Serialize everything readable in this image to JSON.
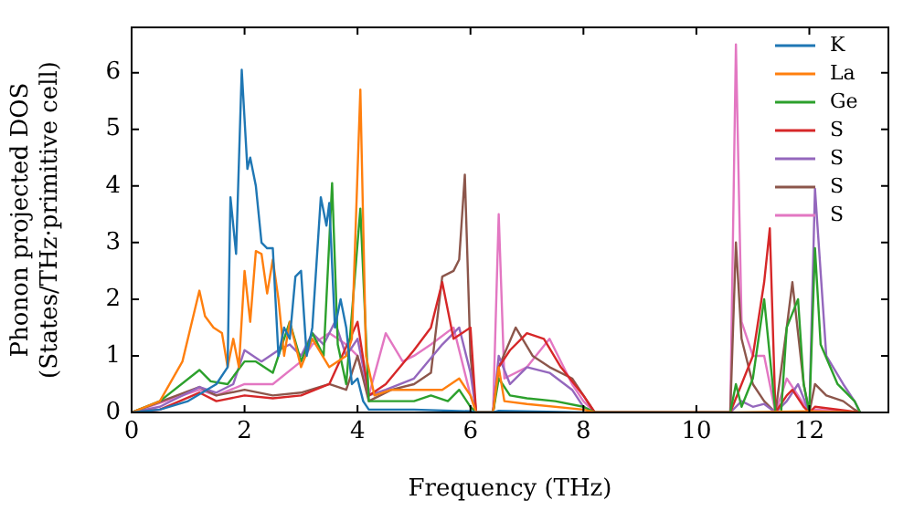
{
  "chart_data": {
    "type": "line",
    "xlabel": "Frequency (THz)",
    "ylabel": "Phonon projected DOS\n(States/THz·primitive cell)",
    "xlim": [
      0,
      13.4
    ],
    "xticks": [
      0,
      2,
      4,
      6,
      8,
      10,
      12
    ],
    "ylim": [
      0,
      6.8
    ],
    "yticks": [
      0,
      1,
      2,
      3,
      4,
      5,
      6
    ],
    "legend": "top right",
    "grid": false,
    "marker": "none",
    "line_style": "solid",
    "series": [
      {
        "name": "K",
        "color": "#1f77b4",
        "x": [
          0,
          0.5,
          1,
          1.5,
          1.7,
          1.75,
          1.85,
          1.95,
          2.05,
          2.1,
          2.2,
          2.3,
          2.4,
          2.5,
          2.6,
          2.7,
          2.8,
          2.9,
          3,
          3.1,
          3.2,
          3.35,
          3.45,
          3.5,
          3.6,
          3.7,
          3.8,
          3.9,
          4,
          4.1,
          4.2,
          5,
          6,
          6.1,
          6.4,
          6.5,
          8
        ],
        "values": [
          0,
          0.05,
          0.2,
          0.5,
          0.8,
          3.8,
          2.8,
          6.05,
          4.3,
          4.5,
          4,
          3,
          2.9,
          2.9,
          1,
          1.5,
          1.3,
          2.4,
          2.5,
          1,
          1.5,
          3.8,
          3.3,
          3.7,
          1.5,
          2,
          1.5,
          0.5,
          0.6,
          0.2,
          0.05,
          0.05,
          0.02,
          0,
          0,
          0.03,
          0
        ]
      },
      {
        "name": "La",
        "color": "#ff7f0e",
        "x": [
          0,
          0.5,
          0.9,
          1.2,
          1.3,
          1.45,
          1.6,
          1.7,
          1.8,
          1.9,
          2,
          2.1,
          2.2,
          2.3,
          2.4,
          2.5,
          2.6,
          2.7,
          2.8,
          3,
          3.2,
          3.5,
          3.8,
          3.9,
          4.05,
          4.15,
          4.3,
          4.6,
          5,
          5.5,
          5.8,
          6,
          6.1,
          6.4,
          6.5,
          6.6,
          7,
          8,
          8.2,
          10.7,
          12,
          12.9
        ],
        "values": [
          0,
          0.2,
          0.9,
          2.15,
          1.7,
          1.5,
          1.4,
          0.8,
          1.3,
          0.8,
          2.5,
          1.6,
          2.85,
          2.8,
          2.1,
          2.7,
          2,
          1,
          1.6,
          0.8,
          1.3,
          0.8,
          1,
          1.3,
          5.7,
          1,
          0.3,
          0.4,
          0.4,
          0.4,
          0.6,
          0.3,
          0,
          0,
          0.8,
          0.2,
          0.15,
          0.05,
          0,
          0,
          0.02,
          0
        ]
      },
      {
        "name": "Ge",
        "color": "#2ca02c",
        "x": [
          0,
          0.5,
          1.2,
          1.4,
          1.7,
          2,
          2.2,
          2.5,
          2.8,
          3,
          3.2,
          3.4,
          3.55,
          3.65,
          3.8,
          4.05,
          4.2,
          4.5,
          5,
          5.3,
          5.6,
          5.8,
          6,
          6.1,
          6.4,
          6.5,
          6.7,
          7,
          7.5,
          8,
          8.2,
          10.6,
          10.7,
          10.8,
          11,
          11.2,
          11.4,
          11.5,
          11.6,
          11.8,
          11.9,
          12,
          12.1,
          12.2,
          12.5,
          12.8,
          12.9
        ],
        "values": [
          0,
          0.2,
          0.75,
          0.55,
          0.5,
          0.9,
          0.9,
          0.7,
          1.6,
          0.9,
          1.4,
          1,
          4.05,
          1.2,
          0.5,
          3.6,
          0.2,
          0.2,
          0.2,
          0.3,
          0.2,
          0.4,
          0.1,
          0,
          0,
          0.6,
          0.3,
          0.25,
          0.2,
          0.1,
          0,
          0,
          0.5,
          0.1,
          0.6,
          2,
          0,
          0,
          1.5,
          2,
          0.5,
          0,
          2.9,
          1.2,
          0.5,
          0.2,
          0
        ]
      },
      {
        "name": "S",
        "color": "#d62728",
        "x": [
          0,
          0.5,
          1.2,
          1.5,
          2,
          2.5,
          3,
          3.5,
          4,
          4.2,
          4.5,
          5,
          5.3,
          5.5,
          5.7,
          6,
          6.1,
          6.4,
          6.5,
          6.7,
          7,
          7.3,
          7.6,
          8,
          8.2,
          10.6,
          10.8,
          11,
          11.2,
          11.3,
          11.4,
          11.6,
          11.7,
          11.9,
          12,
          12.1,
          12.9
        ],
        "values": [
          0,
          0.05,
          0.35,
          0.2,
          0.3,
          0.25,
          0.3,
          0.5,
          1.6,
          0.3,
          0.5,
          1.1,
          1.5,
          2.3,
          1.3,
          1.5,
          0,
          0,
          0.8,
          1.1,
          1.4,
          1.3,
          0.8,
          0.3,
          0,
          0,
          0.5,
          1,
          2.3,
          3.25,
          0,
          0.3,
          0.4,
          0.1,
          0,
          0.1,
          0
        ]
      },
      {
        "name": "S",
        "color": "#9467bd",
        "x": [
          0,
          0.5,
          1.2,
          1.5,
          1.8,
          2,
          2.3,
          2.6,
          2.8,
          3,
          3.2,
          3.4,
          3.6,
          3.8,
          4,
          4.2,
          4.5,
          5,
          5.5,
          5.8,
          6,
          6.1,
          6.4,
          6.5,
          6.7,
          7,
          7.4,
          7.8,
          8,
          8.2,
          10.6,
          10.8,
          11,
          11.2,
          11.4,
          11.6,
          11.8,
          12,
          12.1,
          12.3,
          12.6,
          12.8,
          12.9
        ],
        "values": [
          0,
          0.1,
          0.45,
          0.35,
          0.5,
          1.1,
          0.9,
          1.1,
          1.2,
          1,
          1.4,
          1.2,
          1.6,
          1,
          1.3,
          0.3,
          0.4,
          0.6,
          1.2,
          1.5,
          0.7,
          0,
          0,
          1,
          0.5,
          0.8,
          0.7,
          0.4,
          0.1,
          0,
          0,
          0.2,
          0.1,
          0.15,
          0,
          0.2,
          0.5,
          0,
          3.95,
          1,
          0.5,
          0.2,
          0
        ]
      },
      {
        "name": "S",
        "color": "#8c564b",
        "x": [
          0,
          1.2,
          1.5,
          2,
          2.5,
          3,
          3.5,
          3.8,
          4,
          4.2,
          4.6,
          5,
          5.3,
          5.5,
          5.7,
          5.8,
          5.9,
          6,
          6.1,
          6.4,
          6.5,
          6.8,
          7.1,
          7.4,
          7.8,
          8,
          8.2,
          10.6,
          10.7,
          10.8,
          11,
          11.2,
          11.4,
          11.6,
          11.7,
          11.9,
          12,
          12.1,
          12.3,
          12.6,
          12.8,
          12.9
        ],
        "values": [
          0,
          0.45,
          0.3,
          0.4,
          0.3,
          0.35,
          0.5,
          0.4,
          1,
          0.2,
          0.4,
          0.5,
          0.7,
          2.4,
          2.5,
          2.7,
          4.2,
          1,
          0,
          0,
          0.8,
          1.5,
          1,
          0.8,
          0.6,
          0.3,
          0,
          0,
          3,
          1.3,
          0.5,
          0.2,
          0,
          1.5,
          2.3,
          0.5,
          0,
          0.5,
          0.3,
          0.2,
          0.05,
          0
        ]
      },
      {
        "name": "S",
        "color": "#e377c2",
        "x": [
          0,
          1.2,
          1.5,
          2,
          2.5,
          3,
          3.2,
          3.5,
          3.8,
          4,
          4.2,
          4.5,
          4.8,
          5,
          5.3,
          5.7,
          6,
          6.1,
          6.4,
          6.5,
          6.6,
          7,
          7.4,
          7.8,
          8,
          8.2,
          10.6,
          10.7,
          10.8,
          11,
          11.2,
          11.3,
          11.4,
          11.6,
          11.8,
          12,
          12.1,
          12.9
        ],
        "values": [
          0,
          0.4,
          0.3,
          0.5,
          0.5,
          0.9,
          1.2,
          1.4,
          1.2,
          1,
          0.3,
          1.4,
          0.9,
          1,
          1.2,
          1.5,
          0.3,
          0,
          0,
          3.5,
          0.6,
          0.8,
          1.3,
          0.5,
          0.2,
          0,
          0,
          6.5,
          1.6,
          1,
          1,
          0.5,
          0,
          0.6,
          0.3,
          0,
          0.05,
          0
        ]
      }
    ]
  }
}
